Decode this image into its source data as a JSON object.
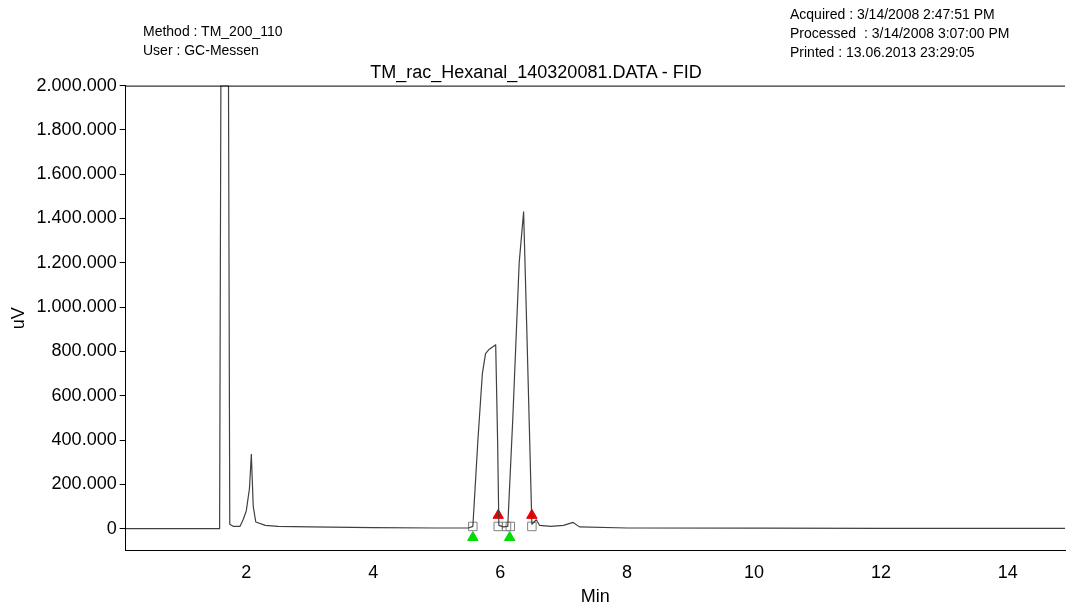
{
  "chart_data": {
    "type": "line",
    "title": "TM_rac_Hexanal_140320081.DATA - FID",
    "xlabel": "Min",
    "ylabel": "uV",
    "annotations": [
      "Method : TM_200_110",
      "User : GC-Messen",
      "Acquired : 3/14/2008 2:47:51 PM",
      "Processed  : 3/14/2008 3:07:00 PM",
      "Printed : 13.06.2013 23:29:05"
    ],
    "xlim": [
      0.1,
      14.9
    ],
    "xticks": [
      2,
      4,
      6,
      8,
      10,
      12,
      14
    ],
    "ylim": [
      -100000,
      2000000
    ],
    "yticks": [
      {
        "value": 0,
        "label": "0"
      },
      {
        "value": 200000,
        "label": "200.000"
      },
      {
        "value": 400000,
        "label": "400.000"
      },
      {
        "value": 600000,
        "label": "600.000"
      },
      {
        "value": 800000,
        "label": "800.000"
      },
      {
        "value": 1000000,
        "label": "1.000.000"
      },
      {
        "value": 1200000,
        "label": "1.200.000"
      },
      {
        "value": 1400000,
        "label": "1.400.000"
      },
      {
        "value": 1600000,
        "label": "1.600.000"
      },
      {
        "value": 1800000,
        "label": "1.800.000"
      },
      {
        "value": 2000000,
        "label": "2.000.000"
      }
    ],
    "grid": false,
    "legend": false,
    "marker": "none",
    "line_style": "solid",
    "series": [
      {
        "color": "#404040",
        "x": [
          0.1,
          1.5,
          1.58,
          1.6,
          1.72,
          1.74,
          1.8,
          1.9,
          1.95,
          2.0,
          2.05,
          2.08,
          2.11,
          2.15,
          2.3,
          2.5,
          3,
          4,
          5,
          5.5,
          5.57,
          5.65,
          5.72,
          5.77,
          5.83,
          5.88,
          5.93,
          5.96,
          5.98,
          6.05,
          6.12,
          6.2,
          6.3,
          6.37,
          6.42,
          6.5,
          6.57,
          6.62,
          6.8,
          7.0,
          7.15,
          7.25,
          8,
          10,
          12,
          14.9
        ],
        "values": [
          0,
          0,
          0,
          2000000,
          2000000,
          20000,
          10000,
          10000,
          40000,
          80000,
          180000,
          335000,
          100000,
          30000,
          15000,
          10000,
          8000,
          5000,
          3000,
          3000,
          10000,
          400000,
          700000,
          790000,
          810000,
          820000,
          830000,
          400000,
          15000,
          8000,
          10000,
          500000,
          1200000,
          1430000,
          900000,
          20000,
          40000,
          15000,
          10000,
          15000,
          28000,
          8000,
          3000,
          2000,
          1000,
          1000
        ]
      },
      {
        "type": "scatter",
        "marker": "square",
        "color": "#808080",
        "x": [
          5.57,
          5.97,
          6.1,
          6.16,
          6.5
        ],
        "values": [
          10000,
          10000,
          10000,
          10000,
          10000
        ]
      },
      {
        "type": "scatter",
        "marker": "triangle",
        "color": "#00dd00",
        "x": [
          5.57,
          6.15
        ],
        "values": [
          -40000,
          -40000
        ]
      },
      {
        "type": "scatter",
        "marker": "triangle",
        "color": "#ee0000",
        "x": [
          5.97,
          6.5
        ],
        "values": [
          60000,
          60000
        ]
      }
    ]
  }
}
